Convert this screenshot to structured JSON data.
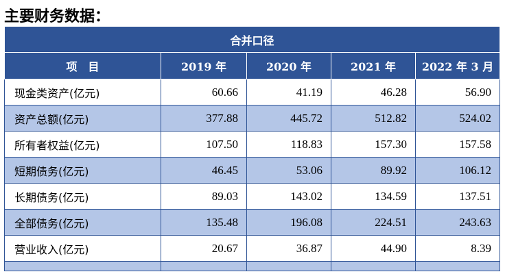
{
  "title": "主要财务数据：",
  "table": {
    "group_header": "合并口径",
    "columns": [
      "项　目",
      "2019 年",
      "2020 年",
      "2021 年",
      "2022 年 3 月"
    ],
    "rows": [
      {
        "label": "现金类资产(亿元)",
        "values": [
          "60.66",
          "41.19",
          "46.28",
          "56.90"
        ]
      },
      {
        "label": "资产总额(亿元)",
        "values": [
          "377.88",
          "445.72",
          "512.82",
          "524.02"
        ]
      },
      {
        "label": "所有者权益(亿元)",
        "values": [
          "107.50",
          "118.83",
          "157.30",
          "157.58"
        ]
      },
      {
        "label": "短期债务(亿元)",
        "values": [
          "46.45",
          "53.06",
          "89.92",
          "106.12"
        ]
      },
      {
        "label": "长期债务(亿元)",
        "values": [
          "89.03",
          "143.02",
          "134.59",
          "137.51"
        ]
      },
      {
        "label": "全部债务(亿元)",
        "values": [
          "135.48",
          "196.08",
          "224.51",
          "243.63"
        ]
      },
      {
        "label": "营业收入(亿元)",
        "values": [
          "20.67",
          "36.87",
          "44.90",
          "8.39"
        ]
      }
    ]
  },
  "colors": {
    "header_bg": "#2f5496",
    "stripe_bg": "#b4c6e7",
    "header_text": "#ffffff"
  }
}
